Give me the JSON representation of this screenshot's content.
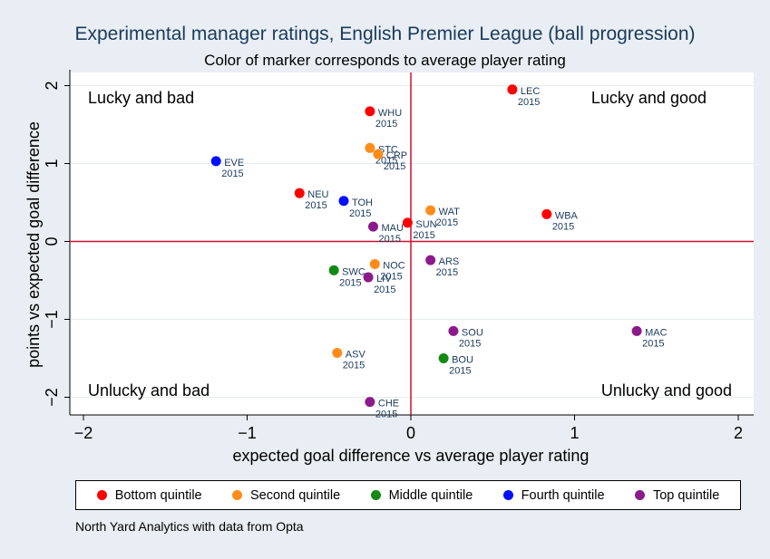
{
  "chart_data": {
    "type": "scatter",
    "title": "Experimental manager ratings, English Premier League (ball progression)",
    "subtitle": "Color of marker corresponds to average player rating",
    "xlabel": "expected goal difference vs average player rating",
    "ylabel": "points vs expected goal difference",
    "xlim": [
      -2.1,
      2.1
    ],
    "ylim": [
      -2.2,
      2.1
    ],
    "xticks": [
      -2,
      -1,
      0,
      1,
      2
    ],
    "yticks": [
      2,
      1,
      0,
      -1,
      -2
    ],
    "quadrants": {
      "top_left": "Lucky and bad",
      "top_right": "Lucky and good",
      "bottom_left": "Unlucky and bad",
      "bottom_right": "Unlucky and good"
    },
    "colors": {
      "bottom": "#ff0000",
      "second": "#ff8c1a",
      "middle": "#138a13",
      "fourth": "#0010ff",
      "top": "#8b1a8b",
      "refline": "#c8102e"
    },
    "legend": [
      {
        "key": "bottom",
        "label": "Bottom quintile"
      },
      {
        "key": "second",
        "label": "Second quintile"
      },
      {
        "key": "middle",
        "label": "Middle quintile"
      },
      {
        "key": "fourth",
        "label": "Fourth quintile"
      },
      {
        "key": "top",
        "label": "Top quintile"
      }
    ],
    "points": [
      {
        "label": "LEC",
        "year": "2015",
        "x": 0.62,
        "y": 1.95,
        "q": "bottom"
      },
      {
        "label": "WHU",
        "year": "2015",
        "x": -0.25,
        "y": 1.67,
        "q": "bottom"
      },
      {
        "label": "STC",
        "year": "2015",
        "x": -0.25,
        "y": 1.2,
        "q": "second"
      },
      {
        "label": "CRP",
        "year": "2015",
        "x": -0.2,
        "y": 1.12,
        "q": "second"
      },
      {
        "label": "EVE",
        "year": "2015",
        "x": -1.19,
        "y": 1.03,
        "q": "fourth"
      },
      {
        "label": "NEU",
        "year": "2015",
        "x": -0.68,
        "y": 0.62,
        "q": "bottom"
      },
      {
        "label": "TOH",
        "year": "2015",
        "x": -0.41,
        "y": 0.52,
        "q": "fourth"
      },
      {
        "label": "WAT",
        "year": "2015",
        "x": 0.12,
        "y": 0.4,
        "q": "second"
      },
      {
        "label": "WBA",
        "year": "2015",
        "x": 0.83,
        "y": 0.35,
        "q": "bottom"
      },
      {
        "label": "SUN",
        "year": "2015",
        "x": -0.02,
        "y": 0.24,
        "q": "bottom"
      },
      {
        "label": "MAU",
        "year": "2015",
        "x": -0.23,
        "y": 0.19,
        "q": "top"
      },
      {
        "label": "ARS",
        "year": "2015",
        "x": 0.12,
        "y": -0.24,
        "q": "top"
      },
      {
        "label": "NOC",
        "year": "2015",
        "x": -0.22,
        "y": -0.29,
        "q": "second"
      },
      {
        "label": "SWC",
        "year": "2015",
        "x": -0.47,
        "y": -0.37,
        "q": "middle"
      },
      {
        "label": "LIV",
        "year": "2015",
        "x": -0.26,
        "y": -0.46,
        "q": "top"
      },
      {
        "label": "SOU",
        "year": "2015",
        "x": 0.26,
        "y": -1.15,
        "q": "top"
      },
      {
        "label": "MAC",
        "year": "2015",
        "x": 1.38,
        "y": -1.15,
        "q": "top"
      },
      {
        "label": "ASV",
        "year": "2015",
        "x": -0.45,
        "y": -1.43,
        "q": "second"
      },
      {
        "label": "BOU",
        "year": "2015",
        "x": 0.2,
        "y": -1.5,
        "q": "middle"
      },
      {
        "label": "CHE",
        "year": "2015",
        "x": -0.25,
        "y": -2.06,
        "q": "top"
      }
    ]
  },
  "source_note": "North Yard Analytics with data from Opta"
}
